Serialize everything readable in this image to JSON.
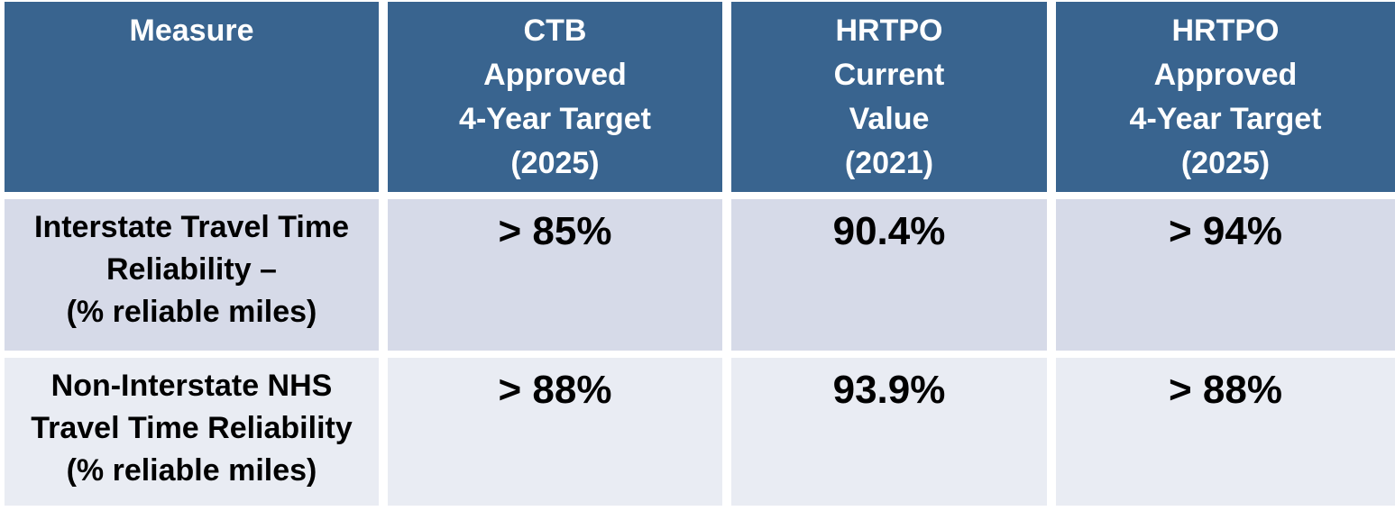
{
  "table": {
    "headers": [
      "Measure",
      "CTB\nApproved\n4-Year Target\n(2025)",
      "HRTPO\nCurrent\nValue\n(2021)",
      "HRTPO\nApproved\n4-Year Target\n(2025)"
    ],
    "rows": [
      {
        "measure": "Interstate Travel Time\nReliability –\n(% reliable miles)",
        "ctb_approved_4yr_target_2025": "> 85%",
        "hrtpo_current_value_2021": "90.4%",
        "hrtpo_approved_4yr_target_2025": "> 94%"
      },
      {
        "measure": "Non-Interstate NHS\nTravel Time Reliability\n(% reliable miles)",
        "ctb_approved_4yr_target_2025": "> 88%",
        "hrtpo_current_value_2021": "93.9%",
        "hrtpo_approved_4yr_target_2025": "> 88%"
      }
    ]
  },
  "colors": {
    "header_bg": "#39648F",
    "header_text": "#FFFFFF",
    "row1_bg": "#D6DAE8",
    "row2_bg": "#E9ECF3",
    "body_text": "#000000",
    "gap": "#FFFFFF"
  }
}
